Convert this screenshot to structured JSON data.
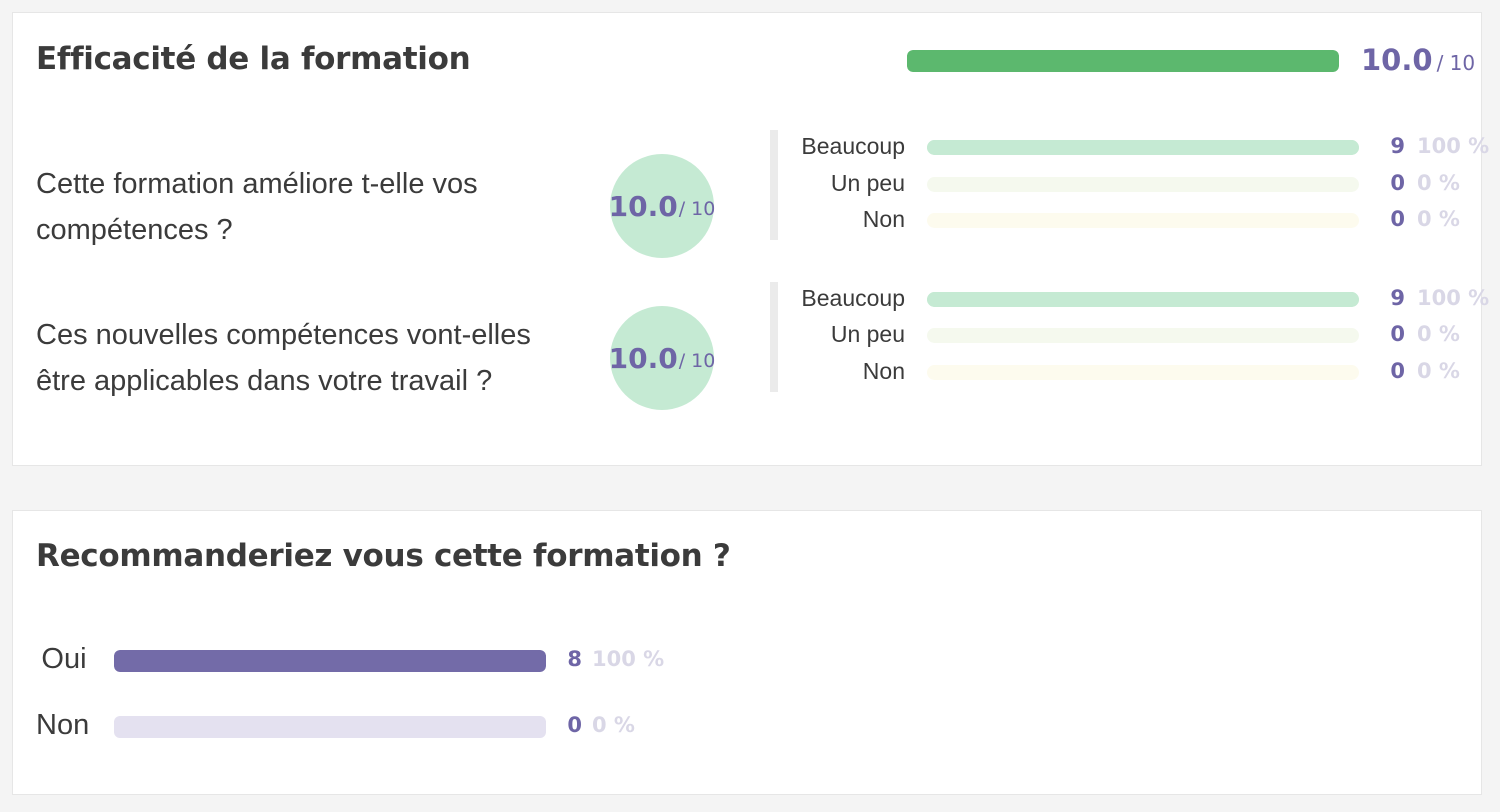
{
  "colors": {
    "accent": "#6e65a6",
    "overall_fill": "#5cb86e",
    "beaucoup_track": "#c5ead3",
    "un_peu_track": "#f5f9ee",
    "non_track": "#fdfbee",
    "recommend_fill": "#736ba8",
    "recommend_track": "#e4e1f0"
  },
  "effectiveness": {
    "title": "Efficacité de la formation",
    "overall": {
      "score": "10.0",
      "max": "/ 10",
      "fill_ratio": 1.0
    },
    "questions": [
      {
        "text": "Cette formation améliore t-elle vos compétences ?",
        "score": "10.0",
        "max": "/ 10",
        "options": [
          {
            "label": "Beaucoup",
            "count": "9",
            "percent": "100 %",
            "ratio": 1.0
          },
          {
            "label": "Un peu",
            "count": "0",
            "percent": "0 %",
            "ratio": 0.0
          },
          {
            "label": "Non",
            "count": "0",
            "percent": "0 %",
            "ratio": 0.0
          }
        ]
      },
      {
        "text": "Ces nouvelles compétences vont-elles être applicables dans votre travail ?",
        "score": "10.0",
        "max": "/ 10",
        "options": [
          {
            "label": "Beaucoup",
            "count": "9",
            "percent": "100 %",
            "ratio": 1.0
          },
          {
            "label": "Un peu",
            "count": "0",
            "percent": "0 %",
            "ratio": 0.0
          },
          {
            "label": "Non",
            "count": "0",
            "percent": "0 %",
            "ratio": 0.0
          }
        ]
      }
    ]
  },
  "recommend": {
    "title": "Recommanderiez vous cette formation ?",
    "options": [
      {
        "label": "Oui",
        "count": "8",
        "percent": "100 %",
        "ratio": 1.0
      },
      {
        "label": "Non",
        "count": "0",
        "percent": "0 %",
        "ratio": 0.0
      }
    ]
  }
}
